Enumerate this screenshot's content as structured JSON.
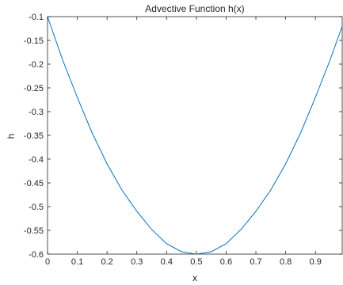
{
  "chart_data": {
    "type": "line",
    "title": "Advective Function h(x)",
    "xlabel": "x",
    "ylabel": "h",
    "xlim": [
      0,
      0.99
    ],
    "ylim": [
      -0.6,
      -0.1
    ],
    "x_ticks": [
      "0",
      "0.1",
      "0.2",
      "0.3",
      "0.4",
      "0.5",
      "0.6",
      "0.7",
      "0.8",
      "0.9"
    ],
    "x_tick_values": [
      0,
      0.1,
      0.2,
      0.3,
      0.4,
      0.5,
      0.6,
      0.7,
      0.8,
      0.9
    ],
    "y_ticks": [
      "-0.1",
      "-0.15",
      "-0.2",
      "-0.25",
      "-0.3",
      "-0.35",
      "-0.4",
      "-0.45",
      "-0.5",
      "-0.55",
      "-0.6"
    ],
    "y_tick_values": [
      -0.1,
      -0.15,
      -0.2,
      -0.25,
      -0.3,
      -0.35,
      -0.4,
      -0.45,
      -0.5,
      -0.55,
      -0.6
    ],
    "grid": false,
    "box": true,
    "series": [
      {
        "color": "#0072BD",
        "x": [
          0,
          0.05,
          0.1,
          0.15,
          0.2,
          0.25,
          0.3,
          0.35,
          0.4,
          0.45,
          0.5,
          0.55,
          0.6,
          0.65,
          0.7,
          0.75,
          0.8,
          0.85,
          0.9,
          0.95,
          0.99
        ],
        "y": [
          -0.1,
          -0.19,
          -0.27,
          -0.345,
          -0.41,
          -0.465,
          -0.51,
          -0.548,
          -0.578,
          -0.595,
          -0.6,
          -0.595,
          -0.578,
          -0.548,
          -0.51,
          -0.465,
          -0.41,
          -0.345,
          -0.27,
          -0.19,
          -0.12
        ]
      }
    ]
  }
}
